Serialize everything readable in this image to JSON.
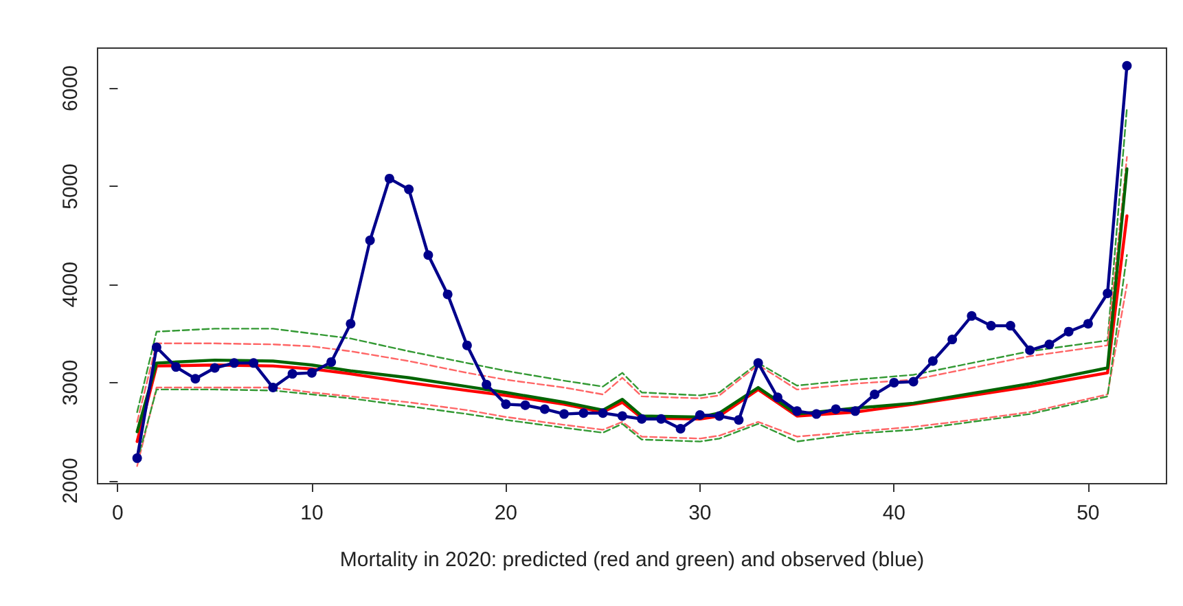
{
  "chart_data": {
    "type": "line",
    "xlabel": "Mortality in 2020: predicted (red and green) and observed (blue)",
    "xlim": [
      -1.04,
      54.04
    ],
    "xticks": [
      0,
      10,
      20,
      30,
      40,
      50
    ],
    "ylim": [
      1970,
      6410
    ],
    "yticks": [
      2000,
      3000,
      4000,
      5000,
      6000
    ],
    "grid": false,
    "series": [
      {
        "color": "#339933",
        "line_style": "dashed",
        "marker": "none",
        "x": [
          1,
          2,
          5,
          8,
          10,
          12,
          15,
          18,
          20,
          23,
          25,
          26,
          27,
          30,
          31,
          33,
          35,
          38,
          41,
          44,
          47,
          51,
          52
        ],
        "values": [
          2700,
          3520,
          3550,
          3550,
          3500,
          3450,
          3320,
          3200,
          3120,
          3020,
          2960,
          3100,
          2900,
          2870,
          2900,
          3200,
          2970,
          3030,
          3080,
          3200,
          3320,
          3430,
          5800
        ]
      },
      {
        "color": "#ff6666",
        "line_style": "dashed",
        "marker": "none",
        "x": [
          1,
          2,
          5,
          8,
          10,
          12,
          15,
          18,
          20,
          23,
          25,
          26,
          27,
          30,
          31,
          33,
          35,
          38,
          41,
          44,
          47,
          51,
          52
        ],
        "values": [
          2600,
          3400,
          3400,
          3390,
          3370,
          3320,
          3220,
          3100,
          3030,
          2950,
          2880,
          3050,
          2860,
          2840,
          2870,
          3180,
          2930,
          2990,
          3030,
          3150,
          3270,
          3380,
          5300
        ]
      },
      {
        "color": "#ff6666",
        "line_style": "dashed",
        "marker": "none",
        "x": [
          1,
          2,
          5,
          8,
          10,
          12,
          15,
          18,
          20,
          23,
          25,
          26,
          27,
          30,
          31,
          33,
          35,
          38,
          41,
          44,
          47,
          51,
          52
        ],
        "values": [
          2150,
          2950,
          2950,
          2950,
          2900,
          2860,
          2800,
          2720,
          2650,
          2570,
          2520,
          2600,
          2450,
          2430,
          2460,
          2600,
          2450,
          2500,
          2550,
          2620,
          2700,
          2880,
          4000
        ]
      },
      {
        "color": "#339933",
        "line_style": "dashed",
        "marker": "none",
        "x": [
          1,
          2,
          5,
          8,
          10,
          12,
          15,
          18,
          20,
          23,
          25,
          26,
          27,
          30,
          31,
          33,
          35,
          38,
          41,
          44,
          47,
          51,
          52
        ],
        "values": [
          2200,
          2930,
          2930,
          2920,
          2880,
          2840,
          2760,
          2680,
          2620,
          2540,
          2490,
          2580,
          2420,
          2400,
          2430,
          2580,
          2400,
          2480,
          2520,
          2600,
          2680,
          2860,
          4300
        ]
      },
      {
        "color": "#ff0000",
        "line_style": "solid",
        "marker": "none",
        "x": [
          1,
          2,
          5,
          8,
          10,
          12,
          15,
          18,
          20,
          23,
          25,
          26,
          27,
          30,
          31,
          33,
          35,
          38,
          41,
          44,
          47,
          51,
          52
        ],
        "values": [
          2400,
          3170,
          3180,
          3170,
          3140,
          3090,
          3000,
          2920,
          2870,
          2780,
          2700,
          2800,
          2640,
          2630,
          2660,
          2930,
          2660,
          2700,
          2780,
          2870,
          2960,
          3100,
          4700
        ]
      },
      {
        "color": "#006400",
        "line_style": "solid",
        "marker": "none",
        "x": [
          1,
          2,
          5,
          8,
          10,
          12,
          15,
          18,
          20,
          23,
          25,
          26,
          27,
          30,
          31,
          33,
          35,
          38,
          41,
          44,
          47,
          51,
          52
        ],
        "values": [
          2500,
          3200,
          3230,
          3220,
          3180,
          3120,
          3050,
          2960,
          2900,
          2800,
          2720,
          2830,
          2660,
          2650,
          2690,
          2950,
          2680,
          2740,
          2790,
          2890,
          2990,
          3150,
          5180
        ]
      },
      {
        "color": "#00008b",
        "line_style": "solid",
        "marker": "circle",
        "x": [
          1,
          2,
          3,
          4,
          5,
          6,
          7,
          8,
          9,
          10,
          11,
          12,
          13,
          14,
          15,
          16,
          17,
          18,
          19,
          20,
          21,
          22,
          23,
          24,
          25,
          26,
          27,
          28,
          29,
          30,
          31,
          32,
          33,
          34,
          35,
          36,
          37,
          38,
          39,
          40,
          41,
          42,
          43,
          44,
          45,
          46,
          47,
          48,
          49,
          50,
          51,
          52
        ],
        "values": [
          2230,
          3360,
          3160,
          3040,
          3150,
          3200,
          3200,
          2950,
          3090,
          3100,
          3210,
          3600,
          4450,
          5080,
          4970,
          4300,
          3900,
          3380,
          2980,
          2780,
          2770,
          2730,
          2680,
          2690,
          2690,
          2660,
          2630,
          2630,
          2530,
          2670,
          2660,
          2620,
          3200,
          2850,
          2710,
          2680,
          2730,
          2710,
          2880,
          3000,
          3010,
          3220,
          3440,
          3680,
          3580,
          3580,
          3330,
          3390,
          3520,
          3600,
          3910,
          6230
        ]
      }
    ]
  }
}
